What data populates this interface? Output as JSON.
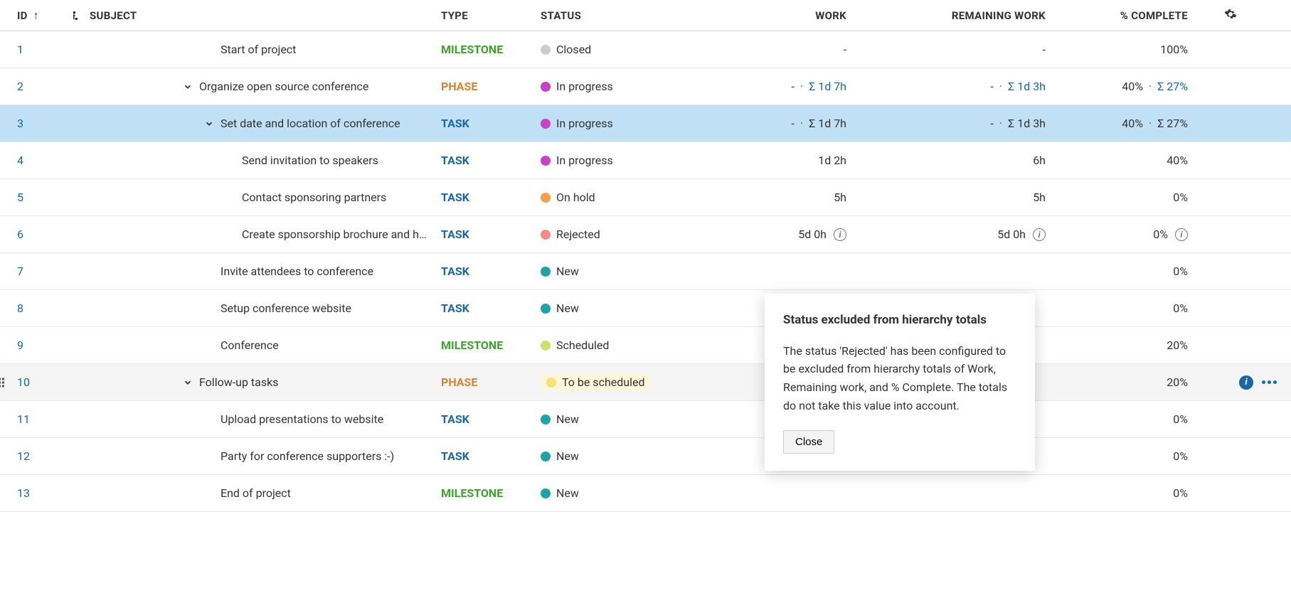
{
  "colors": {
    "link": "#1a67a3",
    "milestone": "#3fa02e",
    "phase": "#d9822b",
    "task": "#1a67a3",
    "status_closed": "#cccccc",
    "status_in_progress": "#c842c8",
    "status_on_hold": "#f2a14a",
    "status_rejected": "#f28b82",
    "status_new": "#1fa3a3",
    "status_scheduled": "#c9e26e",
    "status_to_be_scheduled": "#f4e27a",
    "row_selected": "#bfe0f5",
    "row_hover": "#f5f5f5"
  },
  "columns": {
    "id": "ID",
    "subject": "SUBJECT",
    "type": "TYPE",
    "status": "STATUS",
    "work": "WORK",
    "remaining": "REMAINING WORK",
    "complete": "% COMPLETE"
  },
  "sort_indicator": "↑",
  "tooltip": {
    "title": "Status excluded from hierarchy totals",
    "body": "The status 'Rejected' has been configured to be excluded from hierarchy totals of Work, Remaining work, and % Complete. The totals do not take this value into account.",
    "close": "Close"
  },
  "rows": [
    {
      "id": "1",
      "indent": 1,
      "expand": "",
      "subject": "Start of project",
      "type": "MILESTONE",
      "type_class": "milestone",
      "status": "Closed",
      "status_color": "#cccccc",
      "work": "-",
      "work_sigma": "",
      "remaining": "-",
      "remaining_sigma": "",
      "complete": "100%",
      "complete_sigma": "",
      "info": false,
      "selected": false,
      "hovered": false,
      "badge": false
    },
    {
      "id": "2",
      "indent": 0,
      "expand": "down",
      "subject": "Organize open source conference",
      "type": "PHASE",
      "type_class": "phase",
      "status": "In progress",
      "status_color": "#c842c8",
      "work": "-",
      "work_sigma": "Σ 1d 7h",
      "work_sigma_link": true,
      "remaining": "-",
      "remaining_sigma": "Σ 1d 3h",
      "remaining_sigma_link": true,
      "complete": "40%",
      "complete_sigma": "Σ 27%",
      "complete_sigma_link": true,
      "info": false,
      "selected": false,
      "hovered": false,
      "badge": false
    },
    {
      "id": "3",
      "indent": 1,
      "expand": "down",
      "subject": "Set date and location of conference",
      "type": "TASK",
      "type_class": "task",
      "status": "In progress",
      "status_color": "#c842c8",
      "work": "-",
      "work_sigma": "Σ 1d 7h",
      "work_sigma_link": false,
      "remaining": "-",
      "remaining_sigma": "Σ 1d 3h",
      "remaining_sigma_link": false,
      "complete": "40%",
      "complete_sigma": "Σ 27%",
      "complete_sigma_link": false,
      "info": false,
      "selected": true,
      "hovered": false,
      "badge": false
    },
    {
      "id": "4",
      "indent": 2,
      "expand": "",
      "subject": "Send invitation to speakers",
      "type": "TASK",
      "type_class": "task",
      "status": "In progress",
      "status_color": "#c842c8",
      "work": "1d 2h",
      "work_sigma": "",
      "remaining": "6h",
      "remaining_sigma": "",
      "complete": "40%",
      "complete_sigma": "",
      "info": false,
      "selected": false,
      "hovered": false,
      "badge": false
    },
    {
      "id": "5",
      "indent": 2,
      "expand": "",
      "subject": "Contact sponsoring partners",
      "type": "TASK",
      "type_class": "task",
      "status": "On hold",
      "status_color": "#f2a14a",
      "work": "5h",
      "work_sigma": "",
      "remaining": "5h",
      "remaining_sigma": "",
      "complete": "0%",
      "complete_sigma": "",
      "info": false,
      "selected": false,
      "hovered": false,
      "badge": false
    },
    {
      "id": "6",
      "indent": 2,
      "expand": "",
      "subject": "Create sponsorship brochure and h…",
      "type": "TASK",
      "type_class": "task",
      "status": "Rejected",
      "status_color": "#f28b82",
      "work": "5d 0h",
      "work_sigma": "",
      "remaining": "5d 0h",
      "remaining_sigma": "",
      "complete": "0%",
      "complete_sigma": "",
      "info": true,
      "selected": false,
      "hovered": false,
      "badge": false
    },
    {
      "id": "7",
      "indent": 1,
      "expand": "",
      "subject": "Invite attendees to conference",
      "type": "TASK",
      "type_class": "task",
      "status": "New",
      "status_color": "#1fa3a3",
      "work": "",
      "work_sigma": "",
      "remaining": "",
      "remaining_sigma": "",
      "complete": "0%",
      "complete_sigma": "",
      "info": false,
      "selected": false,
      "hovered": false,
      "badge": false
    },
    {
      "id": "8",
      "indent": 1,
      "expand": "",
      "subject": "Setup conference website",
      "type": "TASK",
      "type_class": "task",
      "status": "New",
      "status_color": "#1fa3a3",
      "work": "",
      "work_sigma": "",
      "remaining": "",
      "remaining_sigma": "",
      "complete": "0%",
      "complete_sigma": "",
      "info": false,
      "selected": false,
      "hovered": false,
      "badge": false
    },
    {
      "id": "9",
      "indent": 1,
      "expand": "",
      "subject": "Conference",
      "type": "MILESTONE",
      "type_class": "milestone",
      "status": "Scheduled",
      "status_color": "#c9e26e",
      "work": "",
      "work_sigma": "",
      "remaining": "",
      "remaining_sigma": "",
      "complete": "20%",
      "complete_sigma": "",
      "info": false,
      "selected": false,
      "hovered": false,
      "badge": false
    },
    {
      "id": "10",
      "indent": 0,
      "expand": "down",
      "subject": "Follow-up tasks",
      "type": "PHASE",
      "type_class": "phase",
      "status": "To be scheduled",
      "status_color": "#f4e27a",
      "work": "",
      "work_sigma": "",
      "remaining": "",
      "remaining_sigma": "",
      "complete": "20%",
      "complete_sigma": "",
      "info": false,
      "selected": false,
      "hovered": true,
      "badge": true,
      "row_info": true
    },
    {
      "id": "11",
      "indent": 1,
      "expand": "",
      "subject": "Upload presentations to website",
      "type": "TASK",
      "type_class": "task",
      "status": "New",
      "status_color": "#1fa3a3",
      "work": "",
      "work_sigma": "",
      "remaining": "",
      "remaining_sigma": "",
      "complete": "0%",
      "complete_sigma": "",
      "info": false,
      "selected": false,
      "hovered": false,
      "badge": false
    },
    {
      "id": "12",
      "indent": 1,
      "expand": "",
      "subject": "Party for conference supporters :-)",
      "type": "TASK",
      "type_class": "task",
      "status": "New",
      "status_color": "#1fa3a3",
      "work": "",
      "work_sigma": "",
      "remaining": "",
      "remaining_sigma": "",
      "complete": "0%",
      "complete_sigma": "",
      "info": false,
      "selected": false,
      "hovered": false,
      "badge": false
    },
    {
      "id": "13",
      "indent": 1,
      "expand": "",
      "subject": "End of project",
      "type": "MILESTONE",
      "type_class": "milestone",
      "status": "New",
      "status_color": "#1fa3a3",
      "work": "",
      "work_sigma": "",
      "remaining": "",
      "remaining_sigma": "",
      "complete": "0%",
      "complete_sigma": "",
      "info": false,
      "selected": false,
      "hovered": false,
      "badge": false
    }
  ]
}
